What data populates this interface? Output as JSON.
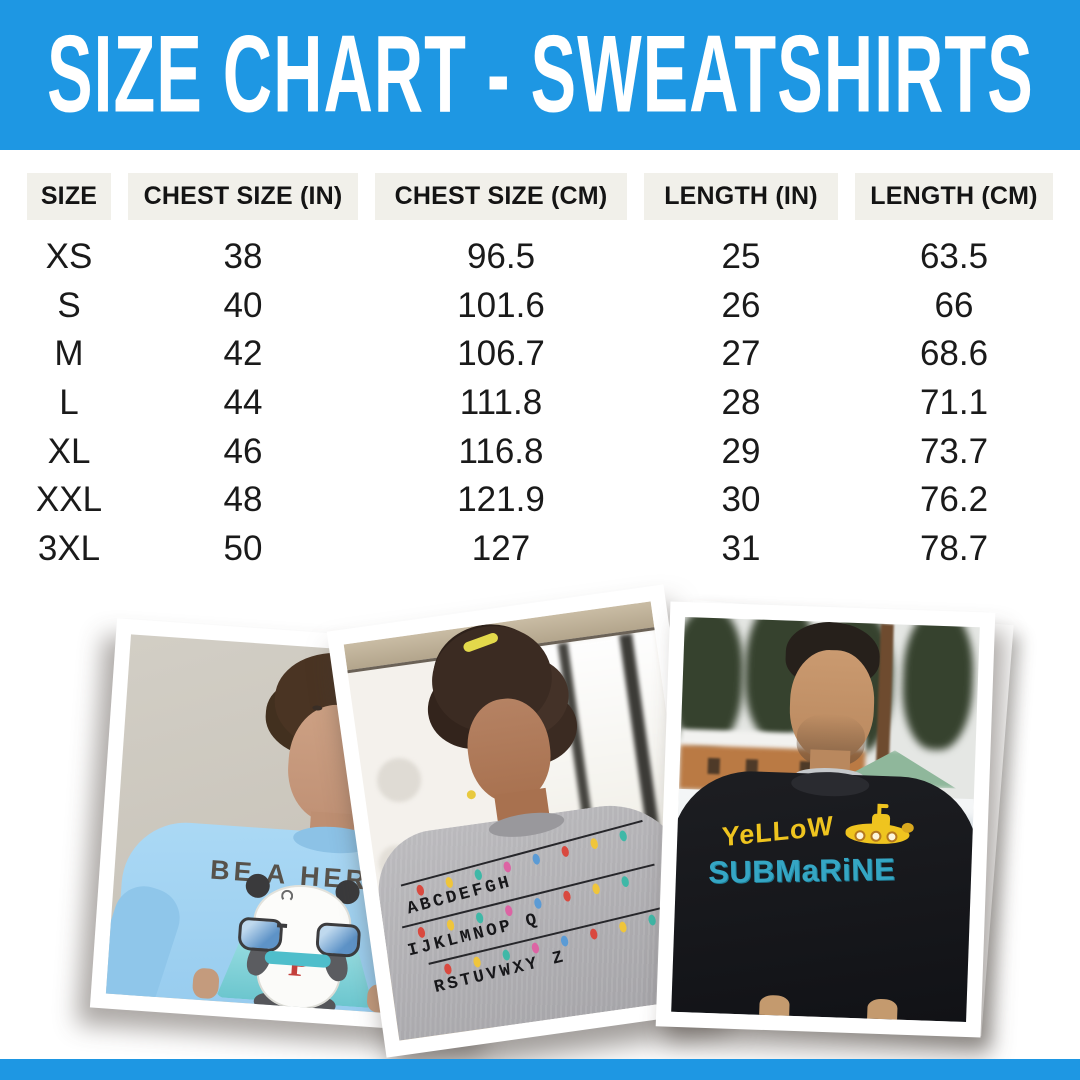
{
  "header": {
    "title": "SIZE CHART - SWEATSHIRTS"
  },
  "colors": {
    "accent_blue": "#1E97E3",
    "table_header_bg": "#F1F0EA",
    "p1_shirt_blue": "#A5D6F3",
    "p2_shirt_gray": "#B3B2B5",
    "p3_shirt_black": "#17181C",
    "print_yellow": "#EFC41F",
    "print_teal": "#35A6C4",
    "light_string": [
      "#D9493F",
      "#EFC53B",
      "#3FB8A7",
      "#DC64A4",
      "#5B9BD5"
    ]
  },
  "table": {
    "columns": [
      "SIZE",
      "CHEST SIZE (IN)",
      "CHEST SIZE (CM)",
      "LENGTH (IN)",
      "LENGTH (CM)"
    ],
    "rows": [
      [
        "XS",
        "38",
        "96.5",
        "25",
        "63.5"
      ],
      [
        "S",
        "40",
        "101.6",
        "26",
        "66"
      ],
      [
        "M",
        "42",
        "106.7",
        "27",
        "68.6"
      ],
      [
        "L",
        "44",
        "111.8",
        "28",
        "71.1"
      ],
      [
        "XL",
        "46",
        "116.8",
        "29",
        "73.7"
      ],
      [
        "XXL",
        "48",
        "121.9",
        "30",
        "76.2"
      ],
      [
        "3XL",
        "50",
        "127",
        "31",
        "78.7"
      ]
    ]
  },
  "photos": {
    "p1": {
      "print": "BE A HERO",
      "emblem": "P"
    },
    "p2": {
      "lines": [
        "ABCDEFGH",
        "IJKLMNOP Q",
        "RSTUVWXY Z"
      ]
    },
    "p3": {
      "line1": "YeLLoW",
      "line2": "SUBMaRiNE"
    }
  }
}
